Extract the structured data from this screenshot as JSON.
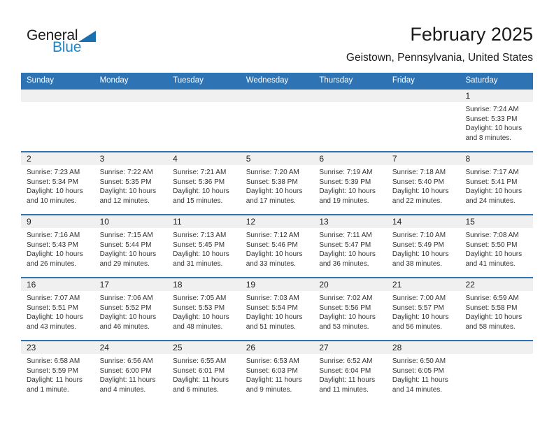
{
  "logo": {
    "text_dark": "General",
    "text_blue": "Blue",
    "triangle_icon": "blue-flag-triangle"
  },
  "header": {
    "title": "February 2025",
    "location": "Geistown, Pennsylvania, United States"
  },
  "colors": {
    "header_bar": "#2E74B5",
    "week_divider": "#2E74B5",
    "day_band": "#F0F0F0",
    "logo_blue": "#1E87CB",
    "logo_triangle": "#1A6FAE",
    "text_dark": "#1A1A1A",
    "cell_text": "#333333"
  },
  "weekdays": [
    "Sunday",
    "Monday",
    "Tuesday",
    "Wednesday",
    "Thursday",
    "Friday",
    "Saturday"
  ],
  "weeks": [
    [
      null,
      null,
      null,
      null,
      null,
      null,
      {
        "day": "1",
        "lines": [
          "Sunrise: 7:24 AM",
          "Sunset: 5:33 PM",
          "Daylight: 10 hours",
          "and 8 minutes."
        ]
      }
    ],
    [
      {
        "day": "2",
        "lines": [
          "Sunrise: 7:23 AM",
          "Sunset: 5:34 PM",
          "Daylight: 10 hours",
          "and 10 minutes."
        ]
      },
      {
        "day": "3",
        "lines": [
          "Sunrise: 7:22 AM",
          "Sunset: 5:35 PM",
          "Daylight: 10 hours",
          "and 12 minutes."
        ]
      },
      {
        "day": "4",
        "lines": [
          "Sunrise: 7:21 AM",
          "Sunset: 5:36 PM",
          "Daylight: 10 hours",
          "and 15 minutes."
        ]
      },
      {
        "day": "5",
        "lines": [
          "Sunrise: 7:20 AM",
          "Sunset: 5:38 PM",
          "Daylight: 10 hours",
          "and 17 minutes."
        ]
      },
      {
        "day": "6",
        "lines": [
          "Sunrise: 7:19 AM",
          "Sunset: 5:39 PM",
          "Daylight: 10 hours",
          "and 19 minutes."
        ]
      },
      {
        "day": "7",
        "lines": [
          "Sunrise: 7:18 AM",
          "Sunset: 5:40 PM",
          "Daylight: 10 hours",
          "and 22 minutes."
        ]
      },
      {
        "day": "8",
        "lines": [
          "Sunrise: 7:17 AM",
          "Sunset: 5:41 PM",
          "Daylight: 10 hours",
          "and 24 minutes."
        ]
      }
    ],
    [
      {
        "day": "9",
        "lines": [
          "Sunrise: 7:16 AM",
          "Sunset: 5:43 PM",
          "Daylight: 10 hours",
          "and 26 minutes."
        ]
      },
      {
        "day": "10",
        "lines": [
          "Sunrise: 7:15 AM",
          "Sunset: 5:44 PM",
          "Daylight: 10 hours",
          "and 29 minutes."
        ]
      },
      {
        "day": "11",
        "lines": [
          "Sunrise: 7:13 AM",
          "Sunset: 5:45 PM",
          "Daylight: 10 hours",
          "and 31 minutes."
        ]
      },
      {
        "day": "12",
        "lines": [
          "Sunrise: 7:12 AM",
          "Sunset: 5:46 PM",
          "Daylight: 10 hours",
          "and 33 minutes."
        ]
      },
      {
        "day": "13",
        "lines": [
          "Sunrise: 7:11 AM",
          "Sunset: 5:47 PM",
          "Daylight: 10 hours",
          "and 36 minutes."
        ]
      },
      {
        "day": "14",
        "lines": [
          "Sunrise: 7:10 AM",
          "Sunset: 5:49 PM",
          "Daylight: 10 hours",
          "and 38 minutes."
        ]
      },
      {
        "day": "15",
        "lines": [
          "Sunrise: 7:08 AM",
          "Sunset: 5:50 PM",
          "Daylight: 10 hours",
          "and 41 minutes."
        ]
      }
    ],
    [
      {
        "day": "16",
        "lines": [
          "Sunrise: 7:07 AM",
          "Sunset: 5:51 PM",
          "Daylight: 10 hours",
          "and 43 minutes."
        ]
      },
      {
        "day": "17",
        "lines": [
          "Sunrise: 7:06 AM",
          "Sunset: 5:52 PM",
          "Daylight: 10 hours",
          "and 46 minutes."
        ]
      },
      {
        "day": "18",
        "lines": [
          "Sunrise: 7:05 AM",
          "Sunset: 5:53 PM",
          "Daylight: 10 hours",
          "and 48 minutes."
        ]
      },
      {
        "day": "19",
        "lines": [
          "Sunrise: 7:03 AM",
          "Sunset: 5:54 PM",
          "Daylight: 10 hours",
          "and 51 minutes."
        ]
      },
      {
        "day": "20",
        "lines": [
          "Sunrise: 7:02 AM",
          "Sunset: 5:56 PM",
          "Daylight: 10 hours",
          "and 53 minutes."
        ]
      },
      {
        "day": "21",
        "lines": [
          "Sunrise: 7:00 AM",
          "Sunset: 5:57 PM",
          "Daylight: 10 hours",
          "and 56 minutes."
        ]
      },
      {
        "day": "22",
        "lines": [
          "Sunrise: 6:59 AM",
          "Sunset: 5:58 PM",
          "Daylight: 10 hours",
          "and 58 minutes."
        ]
      }
    ],
    [
      {
        "day": "23",
        "lines": [
          "Sunrise: 6:58 AM",
          "Sunset: 5:59 PM",
          "Daylight: 11 hours",
          "and 1 minute."
        ]
      },
      {
        "day": "24",
        "lines": [
          "Sunrise: 6:56 AM",
          "Sunset: 6:00 PM",
          "Daylight: 11 hours",
          "and 4 minutes."
        ]
      },
      {
        "day": "25",
        "lines": [
          "Sunrise: 6:55 AM",
          "Sunset: 6:01 PM",
          "Daylight: 11 hours",
          "and 6 minutes."
        ]
      },
      {
        "day": "26",
        "lines": [
          "Sunrise: 6:53 AM",
          "Sunset: 6:03 PM",
          "Daylight: 11 hours",
          "and 9 minutes."
        ]
      },
      {
        "day": "27",
        "lines": [
          "Sunrise: 6:52 AM",
          "Sunset: 6:04 PM",
          "Daylight: 11 hours",
          "and 11 minutes."
        ]
      },
      {
        "day": "28",
        "lines": [
          "Sunrise: 6:50 AM",
          "Sunset: 6:05 PM",
          "Daylight: 11 hours",
          "and 14 minutes."
        ]
      },
      null
    ]
  ]
}
